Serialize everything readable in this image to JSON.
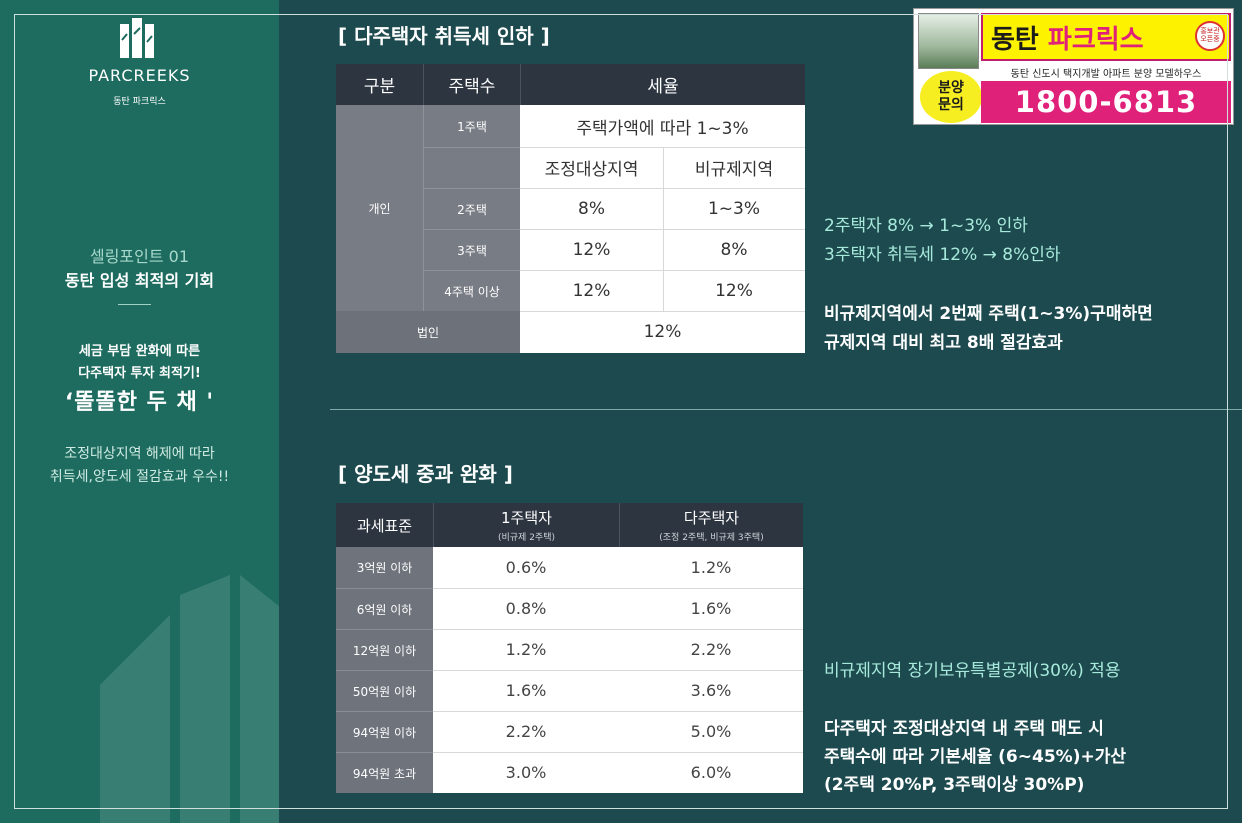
{
  "left_panel": {
    "brand_en": "PARCREEKS",
    "brand_ko": "동탄 파크릭스",
    "selling_point_num": "셀링포인트 01",
    "selling_point_title": "동탄 입성 최적의 기회",
    "para1": "세금 부담 완화에 따른",
    "para2": "다주택자 투자 최적기!",
    "para3": "‘똘똘한 두 채 '",
    "para4": "조정대상지역 해제에 따라",
    "para5": "취득세,양도세 절감효과 우수!!"
  },
  "section1": {
    "title": "[ 다주택자 취득세 인하 ]",
    "headers": [
      "구분",
      "주택수",
      "세율"
    ],
    "individual_label": "개인",
    "row_1house_label": "1주택",
    "row_1house_value": "주택가액에 따라 1~3%",
    "sub_header_adj": "조정대상지역",
    "sub_header_nonreg": "비규제지역",
    "rows": [
      {
        "label": "2주택",
        "adj": "8%",
        "nonreg": "1~3%"
      },
      {
        "label": "3주택",
        "adj": "12%",
        "nonreg": "8%"
      },
      {
        "label": "4주택 이상",
        "adj": "12%",
        "nonreg": "12%"
      }
    ],
    "corp_label": "법인",
    "corp_value": "12%",
    "note1": "2주택자 8% → 1~3% 인하",
    "note2": "3주택자 취득세 12% → 8%인하",
    "note3": "비규제지역에서 2번째 주택(1~3%)구매하면",
    "note4": "규제지역 대비 최고 8배 절감효과"
  },
  "section2": {
    "title": "[ 양도세 중과 완화 ]",
    "headers": [
      {
        "main": "과세표준",
        "sub": ""
      },
      {
        "main": "1주택자",
        "sub": "(비규제 2주택)"
      },
      {
        "main": "다주택자",
        "sub": "(조정 2주택, 비규제 3주택)"
      }
    ],
    "rows": [
      {
        "label": "3억원 이하",
        "one": "0.6%",
        "multi": "1.2%"
      },
      {
        "label": "6억원 이하",
        "one": "0.8%",
        "multi": "1.6%"
      },
      {
        "label": "12억원 이하",
        "one": "1.2%",
        "multi": "2.2%"
      },
      {
        "label": "50억원 이하",
        "one": "1.6%",
        "multi": "3.6%"
      },
      {
        "label": "94억원 이하",
        "one": "2.2%",
        "multi": "5.0%"
      },
      {
        "label": "94억원 초과",
        "one": "3.0%",
        "multi": "6.0%"
      }
    ],
    "note1": "비규제지역 장기보유특별공제(30%) 적용",
    "note2": "다주택자 조정대상지역 내 주택 매도 시",
    "note3": "주택수에 따라 기본세율 (6~45%)+가산",
    "note4": "(2주택 20%P, 3주택이상 30%P)"
  },
  "ad": {
    "name_a": "동탄",
    "name_b": "파크릭스",
    "seal": "홍보관 오픈중",
    "desc": "동탄 신도시 택지개발 아파트 분양 모델하우스",
    "call_a": "분양",
    "call_b": "문의",
    "phone": "1800-6813"
  }
}
